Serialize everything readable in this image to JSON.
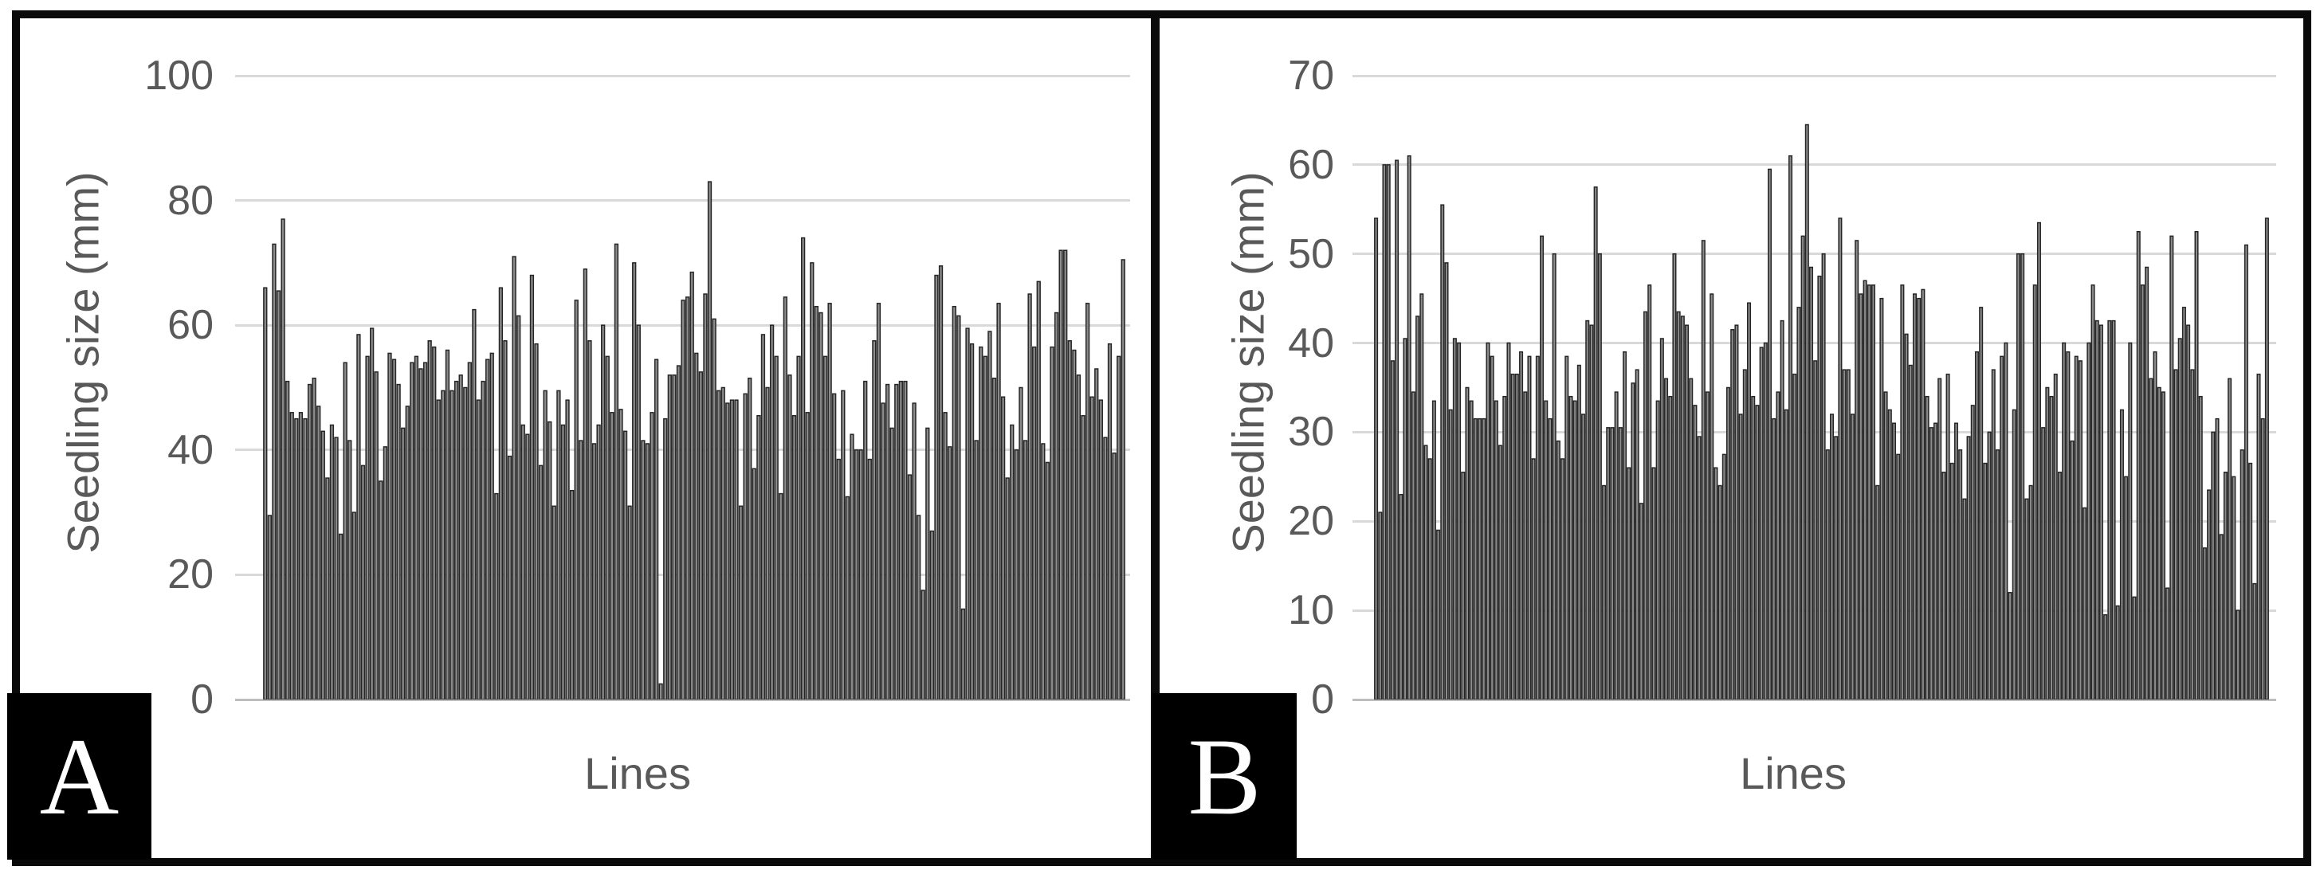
{
  "figure": {
    "background": "#ffffff",
    "border_color": "#0a0a0a",
    "panels": [
      {
        "label": "A"
      },
      {
        "label": "B"
      }
    ]
  },
  "colors": {
    "bar_fill": "#8c8c8c",
    "bar_stroke": "#262626",
    "gridline": "#d9d9d9",
    "baseline": "#bdbdbd",
    "axis_text": "#595959",
    "label_box_bg": "#000000",
    "label_letter": "#ffffff"
  },
  "chart_data": [
    {
      "type": "bar",
      "title": "",
      "xlabel": "Lines",
      "ylabel": "Seedling size (mm)",
      "ylim": [
        0,
        100
      ],
      "yticks": [
        100,
        80,
        60,
        40,
        20,
        0
      ],
      "grid": true,
      "legend": false,
      "x_tick_labels_visible": false,
      "values": [
        66,
        29.5,
        73,
        65.5,
        77,
        51,
        46,
        45,
        46,
        45,
        50.5,
        51.5,
        47,
        43,
        35.5,
        44,
        42,
        26.5,
        54,
        41.5,
        30,
        58.5,
        37.5,
        55,
        59.5,
        52.5,
        35,
        40.5,
        55.5,
        54.5,
        50.5,
        43.5,
        47,
        54,
        55,
        53,
        54,
        57.5,
        56.5,
        48,
        49.5,
        56,
        49.5,
        51,
        52,
        50,
        54,
        62.5,
        48,
        51,
        54.5,
        55.5,
        33,
        66,
        57.5,
        39,
        71,
        61.5,
        44,
        42.5,
        68,
        57,
        37.5,
        49.5,
        44.5,
        31,
        49.5,
        44,
        48,
        33.5,
        64,
        41.5,
        69,
        57.5,
        41,
        44,
        60,
        55,
        46,
        73,
        46.5,
        43,
        31,
        70,
        60,
        41.5,
        41,
        46,
        54.5,
        2.5,
        45,
        52,
        52,
        53.5,
        64,
        64.5,
        68.5,
        55.5,
        52.5,
        65,
        83,
        61,
        49.5,
        50,
        47.5,
        48,
        48,
        31,
        49,
        51.5,
        37,
        45.5,
        58.5,
        50,
        60,
        55,
        33,
        64.5,
        52,
        45.5,
        55,
        74,
        46,
        70,
        63,
        62,
        55,
        63.5,
        49,
        38.5,
        49.5,
        32.5,
        42.5,
        40,
        40,
        51,
        38.5,
        57.5,
        63.5,
        47.5,
        50.5,
        43.5,
        50.5,
        51,
        51,
        36,
        47.5,
        29.5,
        17.5,
        43.5,
        27,
        68,
        69.5,
        46,
        40.5,
        63,
        61.5,
        14.5,
        59.5,
        57,
        41.5,
        56.5,
        55,
        59,
        51.5,
        63.5,
        48.5,
        35.5,
        44,
        40,
        50,
        41.5,
        65,
        56.5,
        67,
        41,
        38,
        56.5,
        62,
        72,
        72,
        57.5,
        56,
        52,
        45.5,
        63.5,
        48.5,
        53,
        48,
        42,
        57,
        39.5,
        55,
        70.5
      ]
    },
    {
      "type": "bar",
      "title": "",
      "xlabel": "Lines",
      "ylabel": "Seedling size (mm)",
      "ylim": [
        0,
        70
      ],
      "yticks": [
        70,
        60,
        50,
        40,
        30,
        20,
        10,
        0
      ],
      "grid": true,
      "legend": false,
      "x_tick_labels_visible": false,
      "values": [
        54,
        21,
        60,
        60,
        38,
        60.5,
        23,
        40.5,
        61,
        34.5,
        43,
        45.5,
        28.5,
        27,
        33.5,
        19,
        55.5,
        49,
        32.5,
        40.5,
        40,
        25.5,
        35,
        33.5,
        31.5,
        31.5,
        31.5,
        40,
        38.5,
        33.5,
        28.5,
        34,
        40,
        36.5,
        36.5,
        39,
        34.5,
        38.5,
        27,
        38.5,
        52,
        33.5,
        31.5,
        50,
        29,
        27,
        38.5,
        34,
        33.5,
        37.5,
        32,
        42.5,
        42,
        57.5,
        50,
        24,
        30.5,
        30.5,
        34.5,
        30.5,
        39,
        26,
        35.5,
        37,
        22,
        43.5,
        46.5,
        26,
        33.5,
        40.5,
        36,
        34,
        50,
        43.5,
        43,
        42,
        36,
        33,
        29.5,
        51.5,
        34.5,
        45.5,
        26,
        24,
        27.5,
        35,
        41.5,
        42,
        32,
        37,
        44.5,
        34,
        33,
        39.5,
        40,
        59.5,
        31.5,
        34.5,
        42.5,
        32.5,
        61,
        36.5,
        44,
        52,
        64.5,
        48.5,
        38,
        47.5,
        50,
        28,
        32,
        29.5,
        54,
        37,
        37,
        32,
        51.5,
        45.5,
        47,
        46.5,
        46.5,
        24,
        45,
        34.5,
        32.5,
        31,
        27.5,
        46.5,
        41,
        37.5,
        45.5,
        45,
        46,
        34,
        30.5,
        31,
        36,
        25.5,
        36.5,
        26.5,
        31,
        28,
        22.5,
        29.5,
        33,
        39,
        44,
        26.5,
        30,
        37,
        28,
        38.5,
        40,
        12,
        32.5,
        50,
        50,
        22.5,
        24,
        46.5,
        53.5,
        30.5,
        35,
        34,
        36.5,
        25.5,
        40,
        39,
        29,
        38.5,
        38,
        21.5,
        40,
        46.5,
        42.5,
        42,
        9.5,
        42.5,
        42.5,
        10.5,
        32.5,
        25,
        40,
        11.5,
        52.5,
        46.5,
        48.5,
        36,
        39,
        35,
        34.5,
        12.5,
        52,
        37,
        40.5,
        44,
        42,
        37,
        52.5,
        34,
        17,
        23.5,
        30,
        31.5,
        18.5,
        25.5,
        36,
        25,
        10,
        28,
        51,
        26.5,
        13,
        36.5,
        31.5,
        54
      ]
    }
  ]
}
